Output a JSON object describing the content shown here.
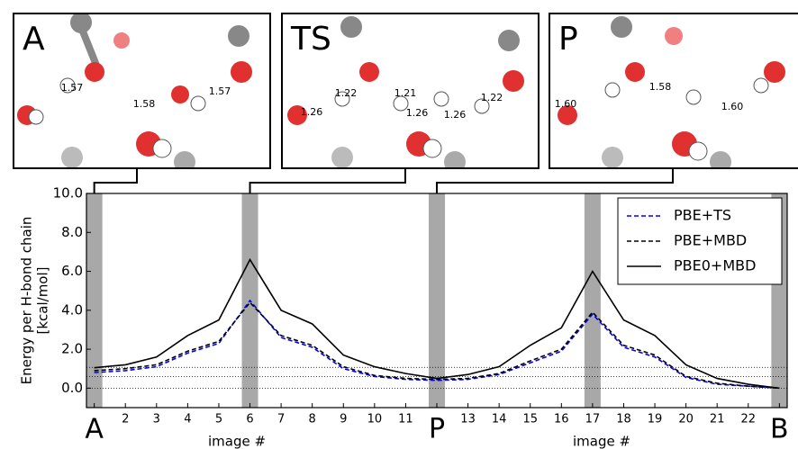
{
  "chart_data": {
    "type": "line",
    "ylabel": [
      "Energy per H-bond chain",
      "[kcal/mol]"
    ],
    "xlabel": "image #",
    "x": [
      1,
      2,
      3,
      4,
      5,
      6,
      7,
      8,
      9,
      10,
      11,
      12,
      13,
      14,
      15,
      16,
      17,
      18,
      19,
      20,
      21,
      22,
      23
    ],
    "xlim": [
      0.75,
      23.25
    ],
    "xticks": [
      {
        "value": 1,
        "label": "A"
      },
      2,
      3,
      4,
      5,
      6,
      7,
      8,
      9,
      10,
      11,
      {
        "value": 12,
        "label": "P"
      },
      13,
      14,
      15,
      16,
      17,
      18,
      19,
      20,
      21,
      22,
      {
        "value": 23,
        "label": "B"
      }
    ],
    "ylim": [
      -1,
      10
    ],
    "yticks": [
      {
        "value": 0,
        "label": "0.0"
      },
      {
        "value": 2,
        "label": "2.0"
      },
      {
        "value": 4,
        "label": "4.0"
      },
      {
        "value": 6,
        "label": "6.0"
      },
      {
        "value": 8,
        "label": "8.0"
      },
      {
        "value": 10,
        "label": "10.0"
      }
    ],
    "highlight_x": [
      1,
      6,
      12,
      17,
      23
    ],
    "reference_lines": [
      1.07,
      0.6,
      0
    ],
    "legend": "upper right",
    "series": [
      {
        "name": "PBE+TS",
        "color": "#0000ff",
        "dash": true,
        "values": [
          0.8,
          0.9,
          1.1,
          1.8,
          2.3,
          4.5,
          2.6,
          2.1,
          1.0,
          0.6,
          0.45,
          0.4,
          0.45,
          0.7,
          1.3,
          1.9,
          3.8,
          2.1,
          1.6,
          0.55,
          0.2,
          0.1,
          0.0
        ]
      },
      {
        "name": "PBE+MBD",
        "color": "#000000",
        "dash": true,
        "values": [
          0.9,
          1.0,
          1.2,
          1.9,
          2.4,
          4.4,
          2.7,
          2.2,
          1.1,
          0.65,
          0.5,
          0.45,
          0.5,
          0.75,
          1.4,
          2.0,
          3.9,
          2.2,
          1.7,
          0.6,
          0.25,
          0.1,
          0.0
        ]
      },
      {
        "name": "PBE0+MBD",
        "color": "#000000",
        "dash": false,
        "values": [
          1.05,
          1.2,
          1.6,
          2.7,
          3.5,
          6.6,
          4.0,
          3.3,
          1.7,
          1.1,
          0.75,
          0.5,
          0.7,
          1.1,
          2.2,
          3.1,
          6.0,
          3.5,
          2.7,
          1.2,
          0.5,
          0.2,
          0.0
        ]
      }
    ],
    "panels": [
      {
        "label": "A",
        "image": 1,
        "bonds": [
          "1.57",
          "1.58",
          "1.57"
        ]
      },
      {
        "label": "TS",
        "image": 6,
        "bonds": [
          "1.22",
          "1.21",
          "1.26",
          "1.26",
          "1.26",
          "1.22"
        ]
      },
      {
        "label": "P",
        "image": 12,
        "bonds": [
          "1.60",
          "1.58",
          "1.60"
        ]
      }
    ]
  }
}
